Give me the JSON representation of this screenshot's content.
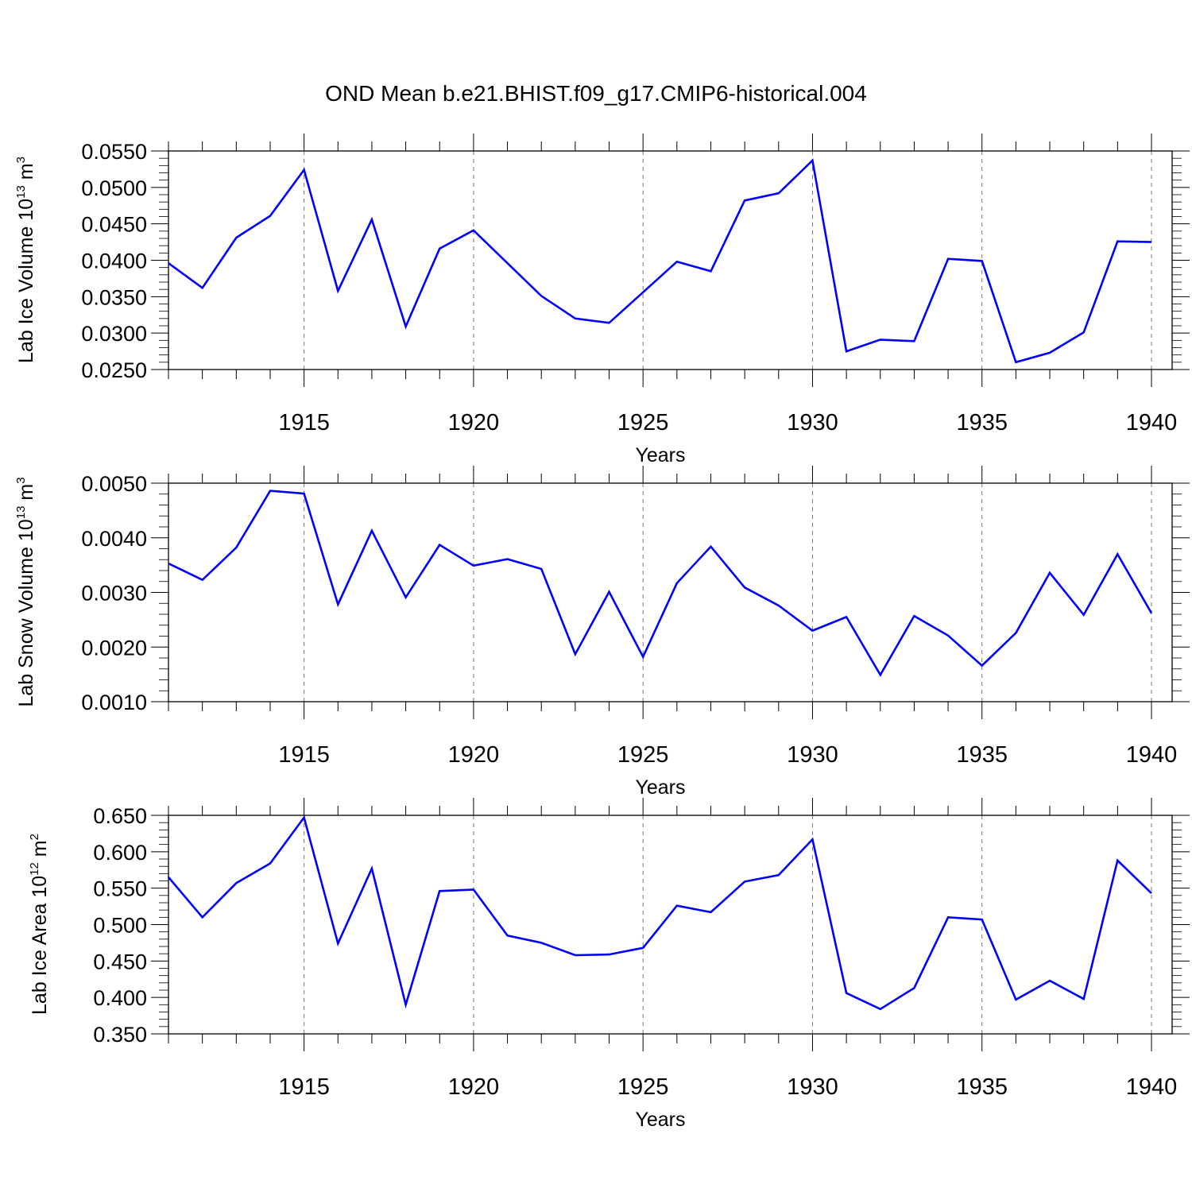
{
  "title": "OND Mean b.e21.BHIST.f09_g17.CMIP6-historical.004",
  "colors": {
    "line": "#0000ff",
    "axis": "#000000",
    "grid": "#777777"
  },
  "chart_data": [
    {
      "type": "line",
      "ylabel": {
        "text": "Lab Ice Volume 10",
        "exp": "13",
        "unit": " m",
        "unit_exp": "3"
      },
      "xlabel": "Years",
      "xlim": [
        1911,
        1940
      ],
      "ylim": [
        0.025,
        0.055
      ],
      "yticks": [
        "0.0250",
        "0.0300",
        "0.0350",
        "0.0400",
        "0.0450",
        "0.0500",
        "0.0550"
      ],
      "xticks": [
        "1915",
        "1920",
        "1925",
        "1930",
        "1935",
        "1940"
      ],
      "grid": "dashed vertical at major x ticks",
      "x": [
        1911,
        1912,
        1913,
        1914,
        1915,
        1916,
        1917,
        1918,
        1919,
        1920,
        1921,
        1922,
        1923,
        1924,
        1925,
        1926,
        1927,
        1928,
        1929,
        1930,
        1931,
        1932,
        1933,
        1934,
        1935,
        1936,
        1937,
        1938,
        1939,
        1940
      ],
      "series": [
        {
          "values": [
            0.0396,
            0.0362,
            0.0431,
            0.0461,
            0.0524,
            0.0358,
            0.0456,
            0.0309,
            0.0416,
            0.0441,
            0.0396,
            0.0351,
            0.032,
            0.0314,
            0.0356,
            0.0398,
            0.0385,
            0.0482,
            0.0492,
            0.0537,
            0.0275,
            0.0291,
            0.0289,
            0.0402,
            0.0399,
            0.026,
            0.0273,
            0.0301,
            0.0426,
            0.0425
          ]
        }
      ]
    },
    {
      "type": "line",
      "ylabel": {
        "text": "Lab Snow Volume 10",
        "exp": "13",
        "unit": " m",
        "unit_exp": "3"
      },
      "xlabel": "Years",
      "xlim": [
        1911,
        1940
      ],
      "ylim": [
        0.001,
        0.005
      ],
      "yticks": [
        "0.0010",
        "0.0020",
        "0.0030",
        "0.0040",
        "0.0050"
      ],
      "xticks": [
        "1915",
        "1920",
        "1925",
        "1930",
        "1935",
        "1940"
      ],
      "grid": "dashed vertical at major x ticks",
      "x": [
        1911,
        1912,
        1913,
        1914,
        1915,
        1916,
        1917,
        1918,
        1919,
        1920,
        1921,
        1922,
        1923,
        1924,
        1925,
        1926,
        1927,
        1928,
        1929,
        1930,
        1931,
        1932,
        1933,
        1934,
        1935,
        1936,
        1937,
        1938,
        1939,
        1940
      ],
      "series": [
        {
          "values": [
            0.00353,
            0.00323,
            0.00382,
            0.00486,
            0.00481,
            0.00278,
            0.00413,
            0.00291,
            0.00387,
            0.00349,
            0.00361,
            0.00343,
            0.00187,
            0.00301,
            0.00182,
            0.00317,
            0.00384,
            0.00309,
            0.00276,
            0.0023,
            0.00255,
            0.00149,
            0.00257,
            0.00221,
            0.00166,
            0.00226,
            0.00336,
            0.00259,
            0.0037,
            0.00262
          ]
        }
      ]
    },
    {
      "type": "line",
      "ylabel": {
        "text": "Lab Ice Area 10",
        "exp": "12",
        "unit": " m",
        "unit_exp": "2"
      },
      "xlabel": "Years",
      "xlim": [
        1911,
        1940
      ],
      "ylim": [
        0.35,
        0.65
      ],
      "yticks": [
        "0.350",
        "0.400",
        "0.450",
        "0.500",
        "0.550",
        "0.600",
        "0.650"
      ],
      "xticks": [
        "1915",
        "1920",
        "1925",
        "1930",
        "1935",
        "1940"
      ],
      "grid": "dashed vertical at major x ticks",
      "x": [
        1911,
        1912,
        1913,
        1914,
        1915,
        1916,
        1917,
        1918,
        1919,
        1920,
        1921,
        1922,
        1923,
        1924,
        1925,
        1926,
        1927,
        1928,
        1929,
        1930,
        1931,
        1932,
        1933,
        1934,
        1935,
        1936,
        1937,
        1938,
        1939,
        1940
      ],
      "series": [
        {
          "values": [
            0.565,
            0.51,
            0.557,
            0.584,
            0.647,
            0.474,
            0.577,
            0.39,
            0.546,
            0.548,
            0.485,
            0.475,
            0.458,
            0.459,
            0.468,
            0.526,
            0.517,
            0.559,
            0.568,
            0.617,
            0.406,
            0.384,
            0.413,
            0.51,
            0.507,
            0.397,
            0.423,
            0.398,
            0.588,
            0.543
          ]
        }
      ]
    }
  ]
}
